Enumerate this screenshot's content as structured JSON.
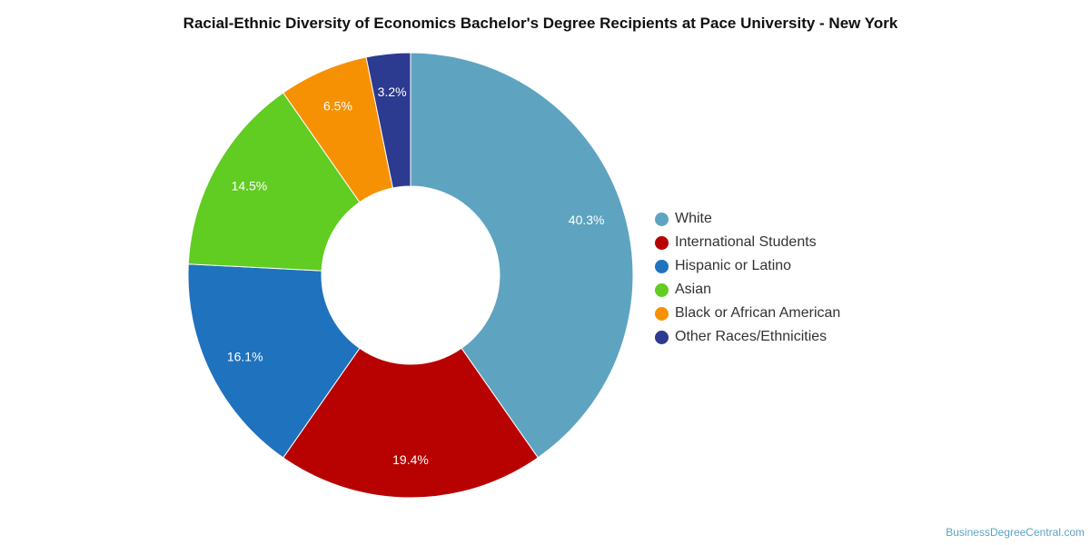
{
  "title": "Racial-Ethnic Diversity of Economics Bachelor's Degree Recipients at Pace University - New York",
  "credit": "BusinessDegreeCentral.com",
  "chart_data": {
    "type": "pie",
    "variant": "donut",
    "title": "Racial-Ethnic Diversity of Economics Bachelor's Degree Recipients at Pace University - New York",
    "legend_position": "right",
    "slices": [
      {
        "label": "White",
        "value": 40.3,
        "value_label": "40.3%",
        "color": "#5ea4c0"
      },
      {
        "label": "International Students",
        "value": 19.4,
        "value_label": "19.4%",
        "color": "#b80202"
      },
      {
        "label": "Hispanic or Latino",
        "value": 16.1,
        "value_label": "16.1%",
        "color": "#1f72bd"
      },
      {
        "label": "Asian",
        "value": 14.5,
        "value_label": "14.5%",
        "color": "#61cc22"
      },
      {
        "label": "Black or African American",
        "value": 6.5,
        "value_label": "6.5%",
        "color": "#f79104"
      },
      {
        "label": "Other Races/Ethnicities",
        "value": 3.2,
        "value_label": "3.2%",
        "color": "#2c3a8f"
      }
    ]
  }
}
